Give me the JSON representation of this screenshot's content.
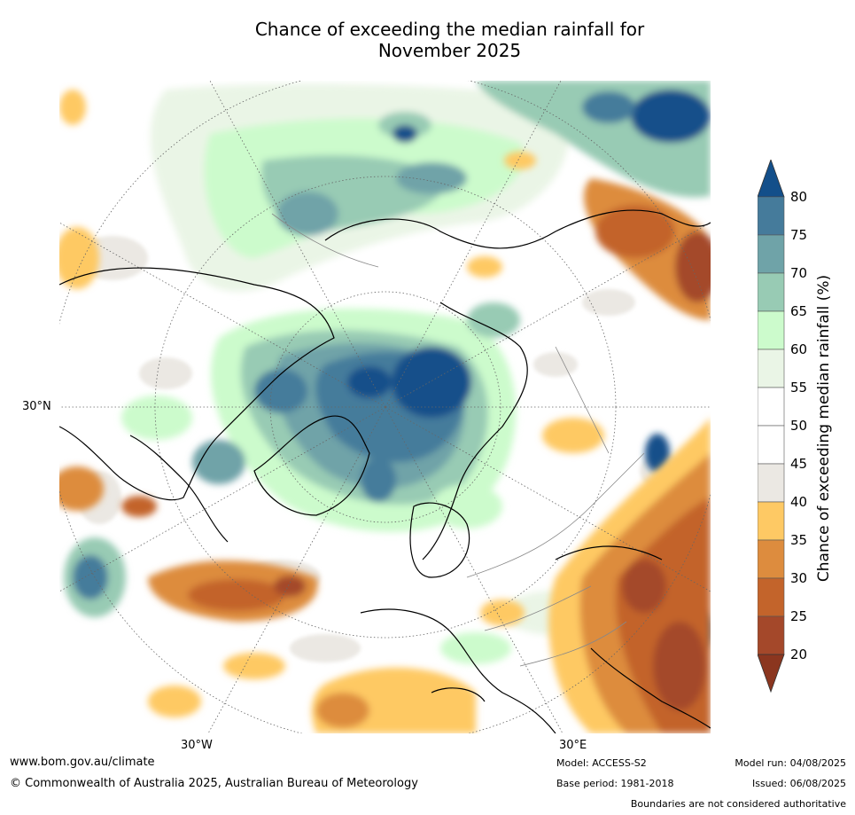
{
  "title": {
    "line1": "Chance of exceeding the median rainfall for",
    "line2": "November 2025"
  },
  "map": {
    "projection": "north-polar-stereographic",
    "lat_label_30n": "30°N",
    "lon_label_30w": "30°W",
    "lon_label_30e": "30°E"
  },
  "colorbar": {
    "label": "Chance of exceeding median rainfall (%)",
    "ticks": [
      "80",
      "75",
      "70",
      "65",
      "60",
      "55",
      "50",
      "45",
      "40",
      "35",
      "30",
      "25",
      "20"
    ],
    "bins": [
      {
        "range": [
          80,
          100
        ],
        "color": "#134f8a"
      },
      {
        "range": [
          75,
          80
        ],
        "color": "#457b9b"
      },
      {
        "range": [
          70,
          75
        ],
        "color": "#6fa3a8"
      },
      {
        "range": [
          65,
          70
        ],
        "color": "#98cbb4"
      },
      {
        "range": [
          60,
          65
        ],
        "color": "#ccfbcc"
      },
      {
        "range": [
          55,
          60
        ],
        "color": "#eaf5e6"
      },
      {
        "range": [
          50,
          55
        ],
        "color": "#ffffff"
      },
      {
        "range": [
          45,
          50
        ],
        "color": "#ffffff"
      },
      {
        "range": [
          40,
          45
        ],
        "color": "#ebe8e3"
      },
      {
        "range": [
          35,
          40
        ],
        "color": "#fec964"
      },
      {
        "range": [
          30,
          35
        ],
        "color": "#dd8c3e"
      },
      {
        "range": [
          25,
          30
        ],
        "color": "#c3642b"
      },
      {
        "range": [
          20,
          25
        ],
        "color": "#a4482a"
      },
      {
        "range": [
          0,
          20
        ],
        "color": "#8b361f"
      }
    ]
  },
  "footer": {
    "website": "www.bom.gov.au/climate",
    "copyright": "© Commonwealth of Australia 2025, Australian Bureau of Meteorology",
    "model": "Model: ACCESS-S2",
    "base_period": "Base period: 1981-2018",
    "model_run": "Model run: 04/08/2025",
    "issued": "Issued: 06/08/2025",
    "boundaries_note": "Boundaries are not considered authoritative"
  }
}
